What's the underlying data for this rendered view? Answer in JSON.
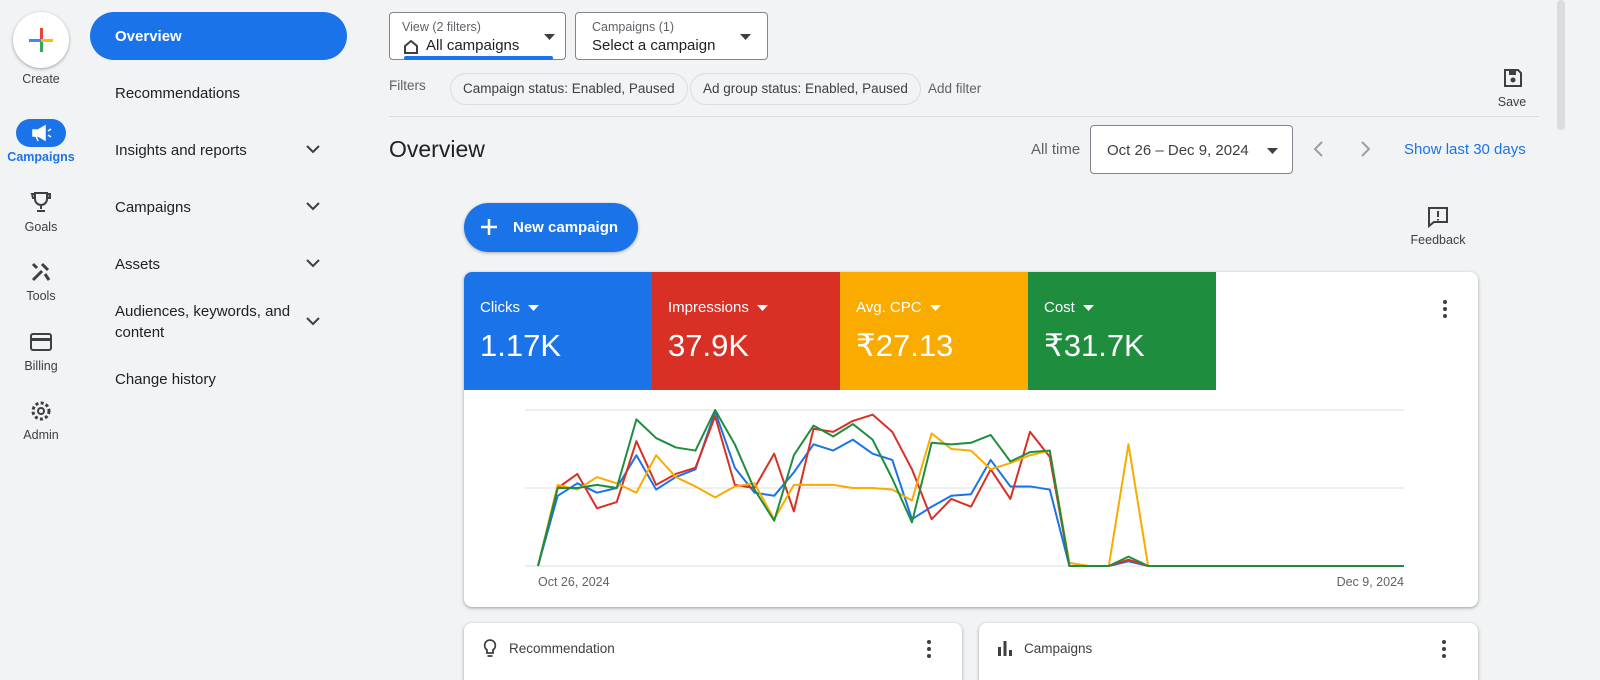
{
  "rail": [
    "Create",
    "Campaigns",
    "Goals",
    "Tools",
    "Billing",
    "Admin"
  ],
  "nav": [
    "Overview",
    "Recommendations",
    "Insights and reports",
    "Campaigns",
    "Assets",
    "Audiences, keywords, and content",
    "Change history"
  ],
  "toolbar": {
    "view_caption": "View (2 filters)",
    "view_value": "All campaigns",
    "campaigns_caption": "Campaigns (1)",
    "campaigns_value": "Select a campaign",
    "filters_label": "Filters",
    "chips": [
      "Campaign status: Enabled, Paused",
      "Ad group status: Enabled, Paused"
    ],
    "add_filter": "Add filter",
    "save": "Save"
  },
  "header": {
    "title": "Overview",
    "range_label": "All time",
    "range": "Oct 26 – Dec 9, 2024",
    "show_last": "Show last 30 days"
  },
  "new_campaign": "New campaign",
  "feedback": "Feedback",
  "chart_data": {
    "type": "line",
    "categories": [
      "Oct 26, 2024",
      null,
      null,
      null,
      null,
      null,
      null,
      null,
      null,
      null,
      null,
      null,
      null,
      null,
      null,
      null,
      null,
      null,
      null,
      null,
      null,
      null,
      null,
      null,
      null,
      null,
      null,
      null,
      null,
      null,
      null,
      null,
      null,
      null,
      null,
      null,
      null,
      null,
      null,
      null,
      null,
      null,
      null,
      null,
      "Dec 9, 2024"
    ],
    "ylim": [
      0,
      100
    ],
    "series": [
      {
        "name": "Clicks",
        "total": "1.17K",
        "color": "#1a73e8",
        "values": [
          0,
          45,
          53,
          47,
          50,
          71,
          49,
          57,
          62,
          99,
          63,
          47,
          45,
          60,
          78,
          74,
          81,
          72,
          68,
          30,
          38,
          45,
          46,
          68,
          51,
          51,
          49,
          0,
          0,
          0,
          3,
          0,
          0,
          0,
          0,
          0,
          0,
          0,
          0,
          0,
          0,
          0,
          0,
          0,
          0
        ]
      },
      {
        "name": "Impressions",
        "total": "37.9K",
        "color": "#d93025",
        "values": [
          0,
          50,
          59,
          37,
          41,
          80,
          52,
          59,
          63,
          96,
          52,
          50,
          72,
          35,
          88,
          86,
          93,
          97,
          86,
          62,
          30,
          43,
          38,
          62,
          43,
          86,
          70,
          0,
          0,
          0,
          4,
          0,
          0,
          0,
          0,
          0,
          0,
          0,
          0,
          0,
          0,
          0,
          0,
          0,
          0
        ]
      },
      {
        "name": "Avg. CPC",
        "total": "₹27.13",
        "color": "#f9ab00",
        "values": [
          0,
          52,
          49,
          57,
          53,
          47,
          71,
          57,
          51,
          44,
          51,
          53,
          30,
          52,
          52,
          52,
          50,
          50,
          49,
          42,
          85,
          75,
          74,
          62,
          66,
          71,
          74,
          2,
          0,
          0,
          78,
          0,
          0,
          0,
          0,
          0,
          0,
          0,
          0,
          0,
          0,
          0,
          0,
          0,
          0
        ]
      },
      {
        "name": "Cost",
        "total": "₹31.7K",
        "color": "#1e8e3e",
        "values": [
          0,
          50,
          50,
          52,
          50,
          94,
          82,
          76,
          74,
          100,
          78,
          49,
          29,
          71,
          90,
          83,
          91,
          81,
          56,
          28,
          79,
          78,
          79,
          84,
          67,
          73,
          74,
          0,
          0,
          0,
          6,
          0,
          0,
          0,
          0,
          0,
          0,
          0,
          0,
          0,
          0,
          0,
          0,
          0,
          0
        ]
      }
    ]
  },
  "cards": [
    "Recommendation",
    "Campaigns"
  ]
}
